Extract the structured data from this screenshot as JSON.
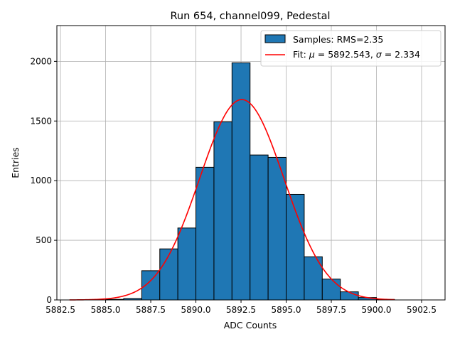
{
  "chart_data": {
    "type": "histogram",
    "title": "Run 654, channel099, Pedestal",
    "xlabel": "ADC Counts",
    "ylabel": "Entries",
    "xlim": [
      5882.3,
      5903.8
    ],
    "ylim": [
      0,
      2300
    ],
    "grid": true,
    "legend_position": "top-right",
    "xticks": [
      5882.5,
      5885.0,
      5887.5,
      5890.0,
      5892.5,
      5895.0,
      5897.5,
      5900.0,
      5902.5
    ],
    "xtick_labels": [
      "5882.5",
      "5885.0",
      "5887.5",
      "5890.0",
      "5892.5",
      "5895.0",
      "5897.5",
      "5900.0",
      "5902.5"
    ],
    "yticks": [
      0,
      500,
      1000,
      1500,
      2000
    ],
    "ytick_labels": [
      "0",
      "500",
      "1000",
      "1500",
      "2000"
    ],
    "histogram": {
      "name": "Samples: RMS=2.35",
      "color": "#1f77b4",
      "edge_color": "#000000",
      "bins": [
        {
          "start": 5885,
          "end": 5886,
          "count": 5
        },
        {
          "start": 5886,
          "end": 5887,
          "count": 12
        },
        {
          "start": 5887,
          "end": 5888,
          "count": 245
        },
        {
          "start": 5888,
          "end": 5889,
          "count": 428
        },
        {
          "start": 5889,
          "end": 5890,
          "count": 603
        },
        {
          "start": 5890,
          "end": 5891,
          "count": 1112
        },
        {
          "start": 5891,
          "end": 5892,
          "count": 1493
        },
        {
          "start": 5892,
          "end": 5893,
          "count": 1988
        },
        {
          "start": 5893,
          "end": 5894,
          "count": 1215
        },
        {
          "start": 5894,
          "end": 5895,
          "count": 1195
        },
        {
          "start": 5895,
          "end": 5896,
          "count": 885
        },
        {
          "start": 5896,
          "end": 5897,
          "count": 362
        },
        {
          "start": 5897,
          "end": 5898,
          "count": 175
        },
        {
          "start": 5898,
          "end": 5899,
          "count": 68
        },
        {
          "start": 5899,
          "end": 5900,
          "count": 20
        },
        {
          "start": 5900,
          "end": 5901,
          "count": 4
        }
      ]
    },
    "fit": {
      "label_prefix": "Fit: ",
      "mu_symbol": "μ",
      "sigma_symbol": "σ",
      "mu_text": " = 5892.543, ",
      "sigma_text": " = 2.334",
      "mu": 5892.543,
      "sigma": 2.334,
      "amplitude": 1680,
      "x_range": [
        5883.0,
        5901.0
      ],
      "color": "#ff0000"
    }
  }
}
